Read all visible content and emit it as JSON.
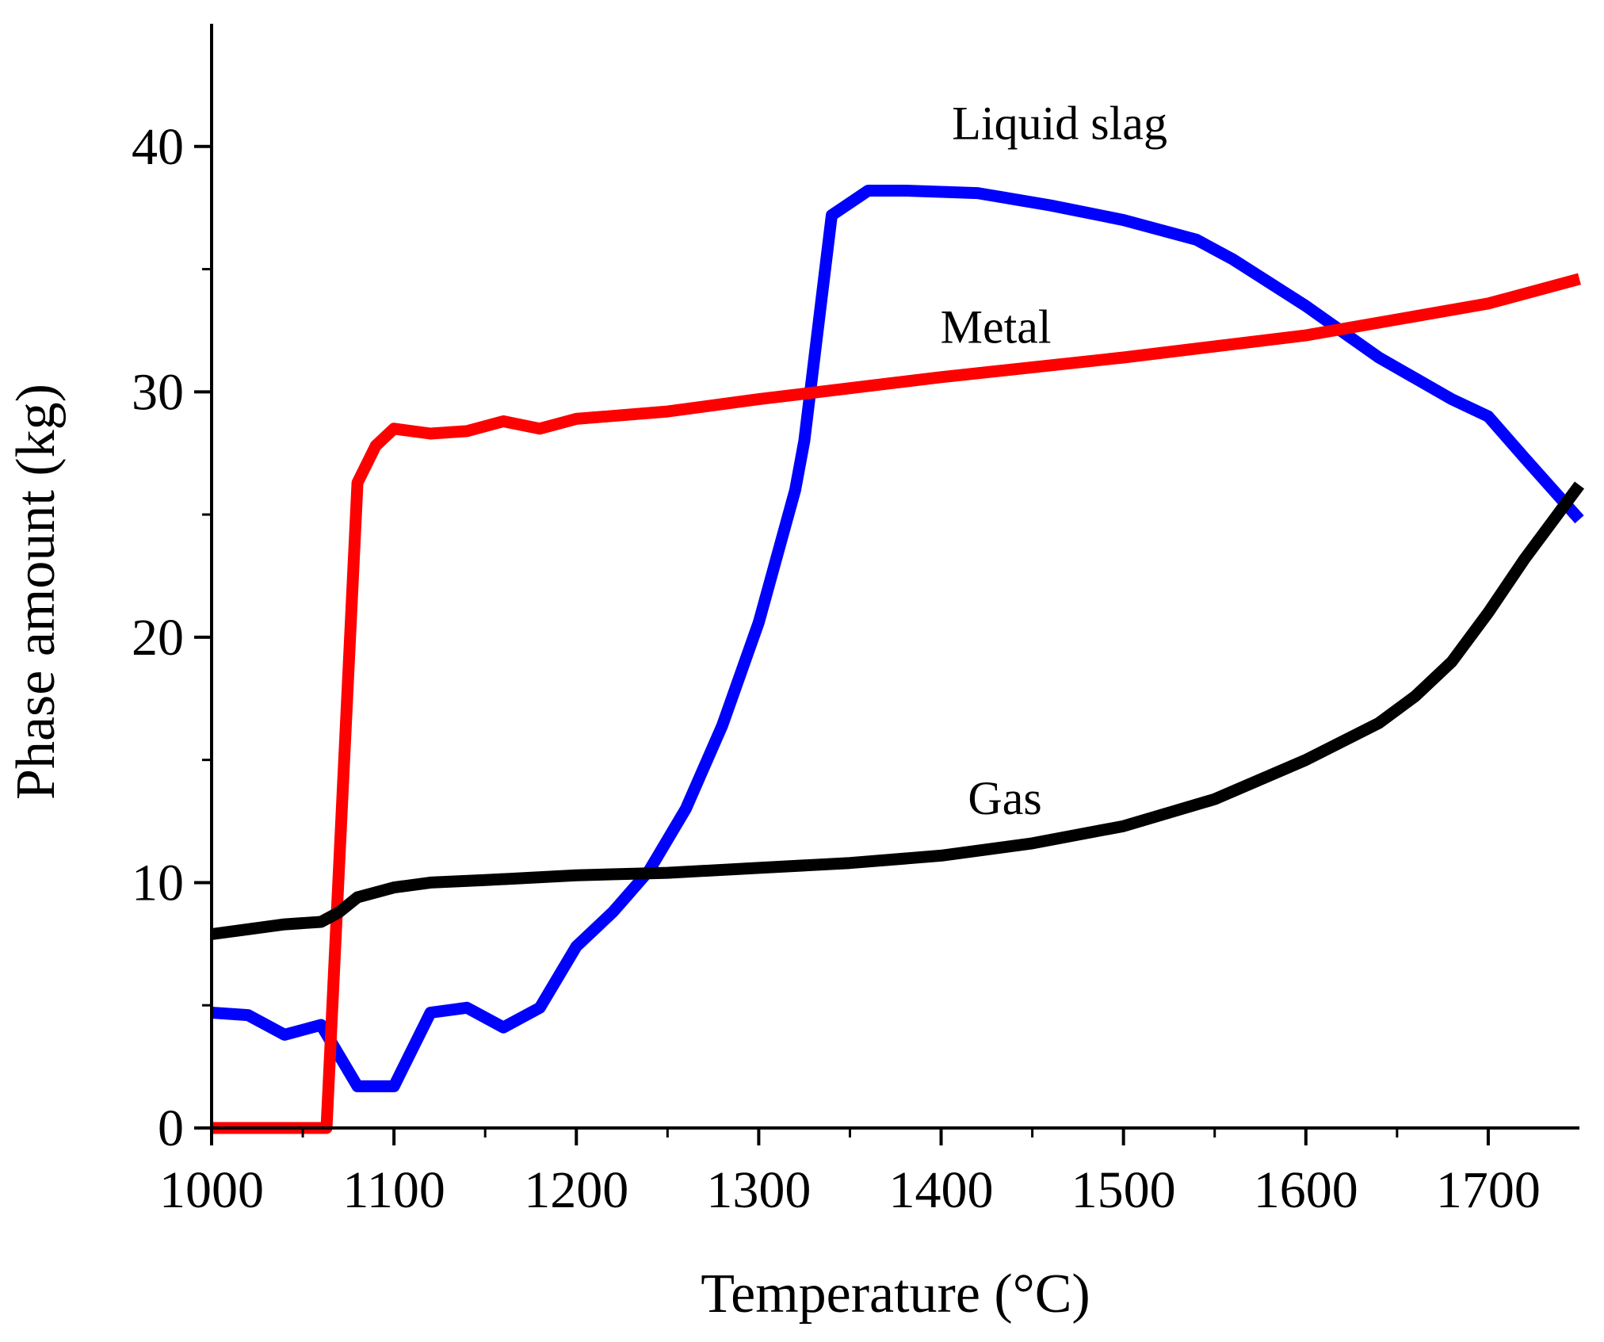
{
  "chart_data": {
    "type": "line",
    "title": "",
    "xlabel": "Temperature (°C)",
    "ylabel": "Phase amount (kg)",
    "xlim": [
      1000,
      1750
    ],
    "ylim": [
      0,
      45
    ],
    "xticks": [
      1000,
      1100,
      1200,
      1300,
      1400,
      1500,
      1600,
      1700
    ],
    "yticks": [
      0,
      10,
      20,
      30,
      40
    ],
    "grid": false,
    "legend": "none",
    "series": [
      {
        "name": "Liquid slag",
        "color": "#0000ff",
        "x": [
          1000,
          1020,
          1040,
          1060,
          1080,
          1100,
          1120,
          1140,
          1160,
          1180,
          1200,
          1220,
          1240,
          1260,
          1280,
          1300,
          1320,
          1325,
          1340,
          1360,
          1380,
          1420,
          1460,
          1500,
          1540,
          1560,
          1600,
          1640,
          1680,
          1700,
          1720,
          1750
        ],
        "y": [
          4.7,
          4.6,
          3.8,
          4.2,
          1.7,
          1.7,
          4.7,
          4.9,
          4.1,
          4.9,
          7.4,
          8.8,
          10.5,
          13.0,
          16.4,
          20.6,
          26.0,
          28.0,
          37.2,
          38.2,
          38.2,
          38.1,
          37.6,
          37.0,
          36.2,
          35.4,
          33.5,
          31.4,
          29.7,
          29.0,
          27.3,
          24.8
        ]
      },
      {
        "name": "Metal",
        "color": "#ff0000",
        "x": [
          1000,
          1060,
          1063,
          1080,
          1090,
          1100,
          1120,
          1140,
          1160,
          1180,
          1200,
          1250,
          1300,
          1400,
          1500,
          1600,
          1700,
          1750
        ],
        "y": [
          0,
          0,
          0,
          26.3,
          27.8,
          28.5,
          28.3,
          28.4,
          28.8,
          28.5,
          28.9,
          29.2,
          29.7,
          30.6,
          31.4,
          32.3,
          33.6,
          34.6
        ]
      },
      {
        "name": "Gas",
        "color": "#000000",
        "x": [
          1000,
          1020,
          1040,
          1060,
          1070,
          1080,
          1100,
          1120,
          1150,
          1200,
          1250,
          1300,
          1350,
          1400,
          1450,
          1500,
          1550,
          1600,
          1640,
          1660,
          1680,
          1700,
          1720,
          1750
        ],
        "y": [
          7.9,
          8.1,
          8.3,
          8.4,
          8.8,
          9.4,
          9.8,
          10.0,
          10.1,
          10.3,
          10.4,
          10.6,
          10.8,
          11.1,
          11.6,
          12.3,
          13.4,
          15.0,
          16.5,
          17.6,
          19.0,
          21.0,
          23.2,
          26.2
        ]
      }
    ],
    "annotations": [
      {
        "text": "Liquid slag",
        "x": 1465,
        "y": 40.3
      },
      {
        "text": "Metal",
        "x": 1430,
        "y": 32.0
      },
      {
        "text": "Gas",
        "x": 1435,
        "y": 12.8
      }
    ]
  }
}
